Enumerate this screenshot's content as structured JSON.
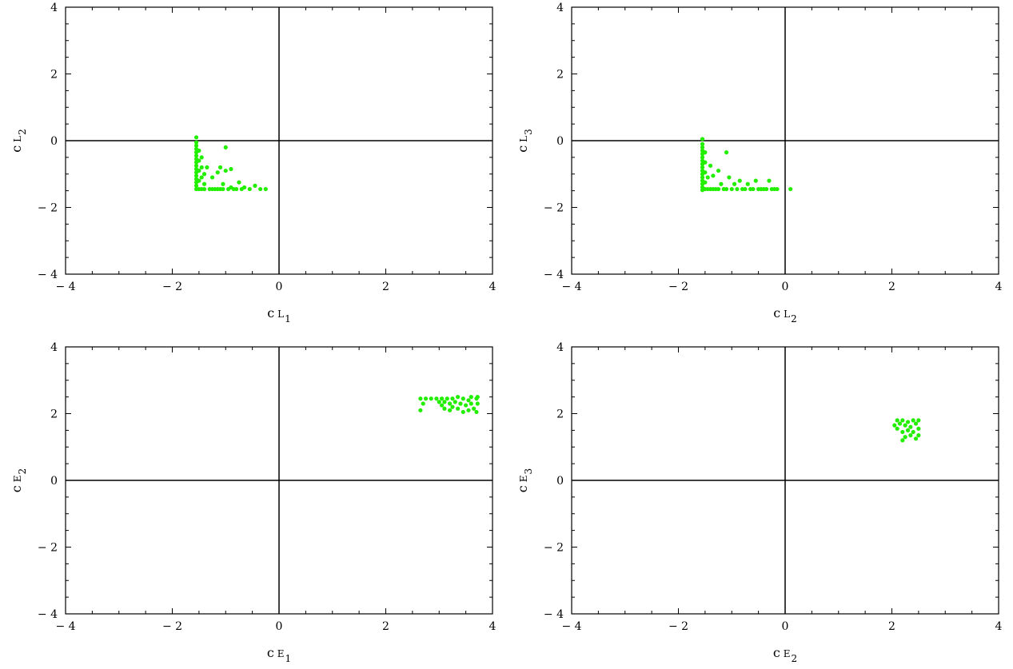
{
  "colors": {
    "points": "#22ee00",
    "axes": "#000000",
    "background": "#ffffff"
  },
  "chart_data": [
    {
      "type": "scatter",
      "title": "",
      "xlabel": {
        "base": "c",
        "sub": "L",
        "subsub": "1"
      },
      "ylabel": {
        "base": "c",
        "sub": "L",
        "subsub": "2"
      },
      "xlim": [
        -4,
        4
      ],
      "ylim": [
        -4,
        4
      ],
      "xticks": [
        -4,
        -2,
        0,
        2,
        4
      ],
      "yticks": [
        -4,
        -2,
        0,
        2,
        4
      ],
      "xtick_labels": [
        "− 4",
        "− 2",
        "0",
        "2",
        "4"
      ],
      "ytick_labels": [
        "− 4",
        "− 2",
        "0",
        "2",
        "4"
      ],
      "zero_lines": true,
      "grid": false,
      "points": [
        [
          -1.55,
          0.1
        ],
        [
          -1.55,
          -0.05
        ],
        [
          -1.55,
          -0.15
        ],
        [
          -1.55,
          -0.25
        ],
        [
          -1.55,
          -0.35
        ],
        [
          -1.55,
          -0.45
        ],
        [
          -1.55,
          -0.55
        ],
        [
          -1.55,
          -0.65
        ],
        [
          -1.55,
          -0.75
        ],
        [
          -1.55,
          -0.85
        ],
        [
          -1.55,
          -0.95
        ],
        [
          -1.55,
          -1.05
        ],
        [
          -1.55,
          -1.15
        ],
        [
          -1.55,
          -1.25
        ],
        [
          -1.55,
          -1.35
        ],
        [
          -1.55,
          -1.45
        ],
        [
          -1.5,
          -0.3
        ],
        [
          -1.5,
          -0.6
        ],
        [
          -1.5,
          -0.9
        ],
        [
          -1.5,
          -1.2
        ],
        [
          -1.5,
          -1.45
        ],
        [
          -1.45,
          -0.5
        ],
        [
          -1.45,
          -0.8
        ],
        [
          -1.45,
          -1.1
        ],
        [
          -1.45,
          -1.45
        ],
        [
          -1.4,
          -1.0
        ],
        [
          -1.4,
          -1.3
        ],
        [
          -1.4,
          -1.45
        ],
        [
          -1.35,
          -0.8
        ],
        [
          -1.3,
          -1.45
        ],
        [
          -1.25,
          -1.1
        ],
        [
          -1.25,
          -1.45
        ],
        [
          -1.2,
          -1.45
        ],
        [
          -1.15,
          -0.95
        ],
        [
          -1.15,
          -1.45
        ],
        [
          -1.1,
          -0.8
        ],
        [
          -1.1,
          -1.45
        ],
        [
          -1.05,
          -1.3
        ],
        [
          -1.05,
          -1.45
        ],
        [
          -1.0,
          -0.2
        ],
        [
          -1.0,
          -0.9
        ],
        [
          -0.95,
          -1.45
        ],
        [
          -0.9,
          -0.85
        ],
        [
          -0.9,
          -1.4
        ],
        [
          -0.85,
          -1.45
        ],
        [
          -0.8,
          -1.45
        ],
        [
          -0.75,
          -1.25
        ],
        [
          -0.7,
          -1.45
        ],
        [
          -0.65,
          -1.4
        ],
        [
          -0.55,
          -1.45
        ],
        [
          -0.45,
          -1.35
        ],
        [
          -0.35,
          -1.45
        ],
        [
          -0.25,
          -1.45
        ]
      ]
    },
    {
      "type": "scatter",
      "title": "",
      "xlabel": {
        "base": "c",
        "sub": "L",
        "subsub": "2"
      },
      "ylabel": {
        "base": "c",
        "sub": "L",
        "subsub": "3"
      },
      "xlim": [
        -4,
        4
      ],
      "ylim": [
        -4,
        4
      ],
      "xticks": [
        -4,
        -2,
        0,
        2,
        4
      ],
      "yticks": [
        -4,
        -2,
        0,
        2,
        4
      ],
      "xtick_labels": [
        "− 4",
        "− 2",
        "0",
        "2",
        "4"
      ],
      "ytick_labels": [
        "− 4",
        "− 2",
        "0",
        "2",
        "4"
      ],
      "zero_lines": true,
      "grid": false,
      "points": [
        [
          -1.55,
          0.05
        ],
        [
          -1.55,
          -0.1
        ],
        [
          -1.55,
          -0.2
        ],
        [
          -1.55,
          -0.3
        ],
        [
          -1.55,
          -0.4
        ],
        [
          -1.55,
          -0.5
        ],
        [
          -1.55,
          -0.6
        ],
        [
          -1.55,
          -0.7
        ],
        [
          -1.55,
          -0.8
        ],
        [
          -1.55,
          -0.9
        ],
        [
          -1.55,
          -1.0
        ],
        [
          -1.55,
          -1.1
        ],
        [
          -1.55,
          -1.2
        ],
        [
          -1.55,
          -1.3
        ],
        [
          -1.55,
          -1.4
        ],
        [
          -1.55,
          -1.48
        ],
        [
          -1.5,
          -0.35
        ],
        [
          -1.5,
          -0.65
        ],
        [
          -1.5,
          -0.95
        ],
        [
          -1.5,
          -1.25
        ],
        [
          -1.5,
          -1.45
        ],
        [
          -1.45,
          -1.1
        ],
        [
          -1.45,
          -1.45
        ],
        [
          -1.4,
          -0.75
        ],
        [
          -1.4,
          -1.45
        ],
        [
          -1.35,
          -1.05
        ],
        [
          -1.35,
          -1.45
        ],
        [
          -1.3,
          -1.45
        ],
        [
          -1.25,
          -0.9
        ],
        [
          -1.25,
          -1.45
        ],
        [
          -1.2,
          -1.3
        ],
        [
          -1.15,
          -1.45
        ],
        [
          -1.1,
          -0.35
        ],
        [
          -1.1,
          -1.45
        ],
        [
          -1.05,
          -1.1
        ],
        [
          -1.0,
          -1.45
        ],
        [
          -0.95,
          -1.3
        ],
        [
          -0.9,
          -1.45
        ],
        [
          -0.85,
          -1.2
        ],
        [
          -0.8,
          -1.45
        ],
        [
          -0.75,
          -1.45
        ],
        [
          -0.7,
          -1.3
        ],
        [
          -0.65,
          -1.45
        ],
        [
          -0.6,
          -1.45
        ],
        [
          -0.55,
          -1.2
        ],
        [
          -0.5,
          -1.45
        ],
        [
          -0.45,
          -1.45
        ],
        [
          -0.4,
          -1.45
        ],
        [
          -0.35,
          -1.45
        ],
        [
          -0.3,
          -1.2
        ],
        [
          -0.25,
          -1.45
        ],
        [
          -0.2,
          -1.45
        ],
        [
          -0.15,
          -1.45
        ],
        [
          0.1,
          -1.45
        ]
      ]
    },
    {
      "type": "scatter",
      "title": "",
      "xlabel": {
        "base": "c",
        "sub": "E",
        "subsub": "1"
      },
      "ylabel": {
        "base": "c",
        "sub": "E",
        "subsub": "2"
      },
      "xlim": [
        -4,
        4
      ],
      "ylim": [
        -4,
        4
      ],
      "xticks": [
        -4,
        -2,
        0,
        2,
        4
      ],
      "yticks": [
        -4,
        -2,
        0,
        2,
        4
      ],
      "xtick_labels": [
        "− 4",
        "− 2",
        "0",
        "2",
        "4"
      ],
      "ytick_labels": [
        "− 4",
        "− 2",
        "0",
        "2",
        "4"
      ],
      "zero_lines": true,
      "grid": false,
      "points": [
        [
          2.65,
          2.45
        ],
        [
          2.65,
          2.1
        ],
        [
          2.7,
          2.3
        ],
        [
          2.75,
          2.45
        ],
        [
          2.85,
          2.45
        ],
        [
          2.95,
          2.45
        ],
        [
          3.0,
          2.35
        ],
        [
          3.05,
          2.45
        ],
        [
          3.05,
          2.25
        ],
        [
          3.1,
          2.35
        ],
        [
          3.1,
          2.15
        ],
        [
          3.15,
          2.45
        ],
        [
          3.2,
          2.3
        ],
        [
          3.2,
          2.1
        ],
        [
          3.25,
          2.45
        ],
        [
          3.25,
          2.2
        ],
        [
          3.3,
          2.35
        ],
        [
          3.35,
          2.5
        ],
        [
          3.35,
          2.15
        ],
        [
          3.4,
          2.3
        ],
        [
          3.45,
          2.45
        ],
        [
          3.45,
          2.05
        ],
        [
          3.5,
          2.25
        ],
        [
          3.55,
          2.4
        ],
        [
          3.55,
          2.1
        ],
        [
          3.6,
          2.5
        ],
        [
          3.6,
          2.3
        ],
        [
          3.65,
          2.15
        ],
        [
          3.7,
          2.45
        ],
        [
          3.7,
          2.05
        ],
        [
          3.72,
          2.3
        ],
        [
          3.72,
          2.5
        ]
      ]
    },
    {
      "type": "scatter",
      "title": "",
      "xlabel": {
        "base": "c",
        "sub": "E",
        "subsub": "2"
      },
      "ylabel": {
        "base": "c",
        "sub": "E",
        "subsub": "3"
      },
      "xlim": [
        -4,
        4
      ],
      "ylim": [
        -4,
        4
      ],
      "xticks": [
        -4,
        -2,
        0,
        2,
        4
      ],
      "yticks": [
        -4,
        -2,
        0,
        2,
        4
      ],
      "xtick_labels": [
        "− 4",
        "− 2",
        "0",
        "2",
        "4"
      ],
      "ytick_labels": [
        "− 4",
        "− 2",
        "0",
        "2",
        "4"
      ],
      "zero_lines": true,
      "grid": false,
      "points": [
        [
          2.05,
          1.65
        ],
        [
          2.1,
          1.8
        ],
        [
          2.1,
          1.55
        ],
        [
          2.15,
          1.7
        ],
        [
          2.2,
          1.8
        ],
        [
          2.2,
          1.45
        ],
        [
          2.25,
          1.65
        ],
        [
          2.25,
          1.3
        ],
        [
          2.3,
          1.75
        ],
        [
          2.3,
          1.5
        ],
        [
          2.35,
          1.6
        ],
        [
          2.35,
          1.35
        ],
        [
          2.4,
          1.8
        ],
        [
          2.4,
          1.45
        ],
        [
          2.45,
          1.7
        ],
        [
          2.45,
          1.25
        ],
        [
          2.5,
          1.55
        ],
        [
          2.5,
          1.8
        ],
        [
          2.5,
          1.35
        ],
        [
          2.2,
          1.2
        ]
      ]
    }
  ]
}
